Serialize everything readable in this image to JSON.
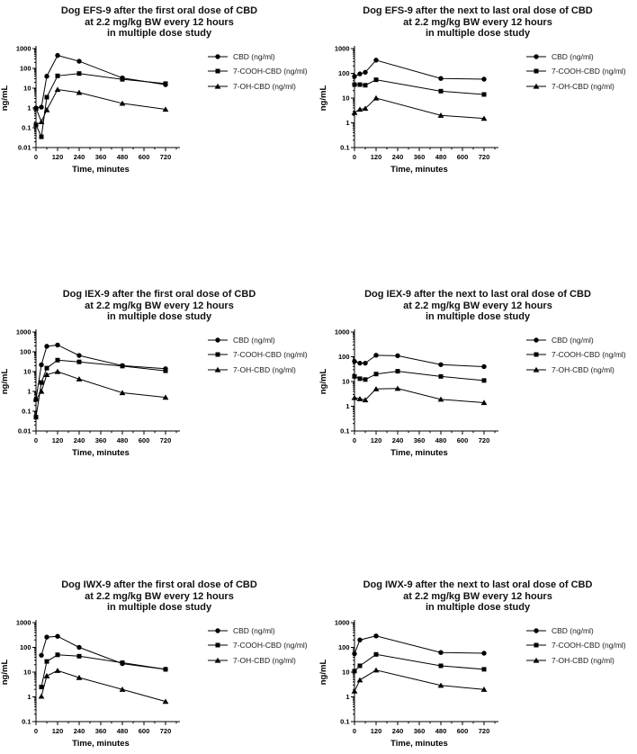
{
  "figure": {
    "background": "#ffffff",
    "line_color": "#000000",
    "text_color": "#111111"
  },
  "legend_labels": [
    "CBD (ng/ml)",
    "7-COOH-CBD (ng/ml)",
    "7-OH-CBD (ng/ml)"
  ],
  "chart_data": [
    {
      "type": "line",
      "title_lines": [
        "Dog EFS-9 after the first oral dose of CBD",
        "at 2.2 mg/kg BW every 12 hours",
        "in multiple dose study"
      ],
      "xlabel": "Time, minutes",
      "ylabel": "ng/mL",
      "yscale": "log",
      "ylim": [
        0.01,
        1000
      ],
      "yticks": [
        "1000",
        "100",
        "10",
        "1",
        "0.1",
        "0.01"
      ],
      "xticks": [
        0,
        120,
        240,
        360,
        480,
        600,
        720
      ],
      "x": [
        0,
        30,
        60,
        120,
        240,
        480,
        720
      ],
      "series": [
        {
          "name": "CBD (ng/ml)",
          "marker": "circle",
          "values": [
            1.0,
            1.1,
            40,
            450,
            230,
            33,
            15
          ]
        },
        {
          "name": "7-COOH-CBD (ng/ml)",
          "marker": "square",
          "values": [
            0.14,
            0.035,
            3.5,
            42,
            55,
            28,
            17
          ]
        },
        {
          "name": "7-OH-CBD (ng/ml)",
          "marker": "triangle",
          "values": [
            1.0,
            0.2,
            0.8,
            8.5,
            6.0,
            1.7,
            0.85
          ]
        }
      ]
    },
    {
      "type": "line",
      "title_lines": [
        "Dog EFS-9 after the next to last oral dose of CBD",
        "at 2.2 mg/kg BW every 12 hours",
        "in multiple dose study"
      ],
      "xlabel": "Time, minutes",
      "ylabel": "ng/mL",
      "yscale": "log",
      "ylim": [
        0.1,
        1000
      ],
      "yticks": [
        "1000",
        "100",
        "10",
        "1",
        "0.1"
      ],
      "xticks": [
        0,
        120,
        240,
        360,
        480,
        600,
        720
      ],
      "x": [
        0,
        30,
        60,
        120,
        480,
        720
      ],
      "series": [
        {
          "name": "CBD (ng/ml)",
          "marker": "circle",
          "values": [
            75,
            95,
            110,
            340,
            62,
            58
          ]
        },
        {
          "name": "7-COOH-CBD (ng/ml)",
          "marker": "square",
          "values": [
            35,
            35,
            33,
            55,
            19,
            14
          ]
        },
        {
          "name": "7-OH-CBD (ng/ml)",
          "marker": "triangle",
          "values": [
            2.6,
            3.5,
            3.8,
            10,
            2.0,
            1.5
          ]
        }
      ]
    },
    {
      "type": "line",
      "title_lines": [
        "Dog IEX-9 after the first oral dose of CBD",
        "at 2.2 mg/kg BW every 12 hours",
        "in multiple dose study"
      ],
      "xlabel": "Time, minutes",
      "ylabel": "ng/mL",
      "yscale": "log",
      "ylim": [
        0.01,
        1000
      ],
      "yticks": [
        "1000",
        "100",
        "10",
        "1",
        "0.1",
        "0.01"
      ],
      "xticks": [
        0,
        120,
        240,
        360,
        480,
        600,
        720
      ],
      "x": [
        0,
        30,
        60,
        120,
        240,
        480,
        720
      ],
      "series": [
        {
          "name": "CBD (ng/ml)",
          "marker": "circle",
          "values": [
            0.4,
            22,
            190,
            220,
            65,
            20,
            14
          ]
        },
        {
          "name": "7-COOH-CBD (ng/ml)",
          "marker": "square",
          "values": [
            0.05,
            2.8,
            15,
            38,
            31,
            19,
            11
          ]
        },
        {
          "name": "7-OH-CBD (ng/ml)",
          "marker": "triangle",
          "values": [
            0.4,
            1.0,
            7.0,
            10,
            4.2,
            0.85,
            0.5
          ]
        }
      ]
    },
    {
      "type": "line",
      "title_lines": [
        "Dog IEX-9 after the next to last oral dose of CBD",
        "at 2.2 mg/kg BW every 12 hours",
        "in multiple dose study"
      ],
      "xlabel": "Time, minutes",
      "ylabel": "ng/mL",
      "yscale": "log",
      "ylim": [
        0.1,
        1000
      ],
      "yticks": [
        "1000",
        "100",
        "10",
        "1",
        "0.1"
      ],
      "xticks": [
        0,
        120,
        240,
        360,
        480,
        600,
        720
      ],
      "x": [
        0,
        30,
        60,
        120,
        240,
        480,
        720
      ],
      "series": [
        {
          "name": "CBD (ng/ml)",
          "marker": "circle",
          "values": [
            65,
            55,
            55,
            115,
            110,
            48,
            40
          ]
        },
        {
          "name": "7-COOH-CBD (ng/ml)",
          "marker": "square",
          "values": [
            16,
            13,
            12,
            20,
            26,
            16,
            11
          ]
        },
        {
          "name": "7-OH-CBD (ng/ml)",
          "marker": "triangle",
          "values": [
            2.2,
            2.0,
            1.8,
            5.0,
            5.2,
            1.9,
            1.4
          ]
        }
      ]
    },
    {
      "type": "line",
      "title_lines": [
        "Dog IWX-9 after the first oral dose of CBD",
        "at 2.2 mg/kg BW every 12 hours",
        "in multiple dose study"
      ],
      "xlabel": "Time, minutes",
      "ylabel": "ng/mL",
      "yscale": "log",
      "ylim": [
        0.1,
        1000
      ],
      "yticks": [
        "1000",
        "100",
        "10",
        "1",
        "0.1"
      ],
      "xticks": [
        0,
        120,
        240,
        360,
        480,
        600,
        720
      ],
      "x": [
        30,
        60,
        120,
        240,
        480,
        720
      ],
      "series": [
        {
          "name": "CBD (ng/ml)",
          "marker": "circle",
          "values": [
            48,
            260,
            280,
            100,
            22,
            13
          ]
        },
        {
          "name": "7-COOH-CBD (ng/ml)",
          "marker": "square",
          "values": [
            2.5,
            27,
            50,
            44,
            24,
            13
          ]
        },
        {
          "name": "7-OH-CBD (ng/ml)",
          "marker": "triangle",
          "values": [
            1.05,
            7.0,
            11.5,
            6.0,
            2.0,
            0.65
          ]
        }
      ]
    },
    {
      "type": "line",
      "title_lines": [
        "Dog IWX-9 after the next to last oral dose of CBD",
        "at 2.2 mg/kg BW every 12 hours",
        "in multiple dose study"
      ],
      "xlabel": "Time, minutes",
      "ylabel": "ng/mL",
      "yscale": "log",
      "ylim": [
        0.1,
        1000
      ],
      "yticks": [
        "1000",
        "100",
        "10",
        "1",
        "0.1"
      ],
      "xticks": [
        0,
        120,
        240,
        360,
        480,
        600,
        720
      ],
      "x": [
        0,
        30,
        120,
        480,
        720
      ],
      "series": [
        {
          "name": "CBD (ng/ml)",
          "marker": "circle",
          "values": [
            55,
            200,
            290,
            62,
            58
          ]
        },
        {
          "name": "7-COOH-CBD (ng/ml)",
          "marker": "square",
          "values": [
            11,
            18,
            52,
            18,
            13
          ]
        },
        {
          "name": "7-OH-CBD (ng/ml)",
          "marker": "triangle",
          "values": [
            1.7,
            4.8,
            12,
            2.9,
            2.0
          ]
        }
      ]
    }
  ]
}
